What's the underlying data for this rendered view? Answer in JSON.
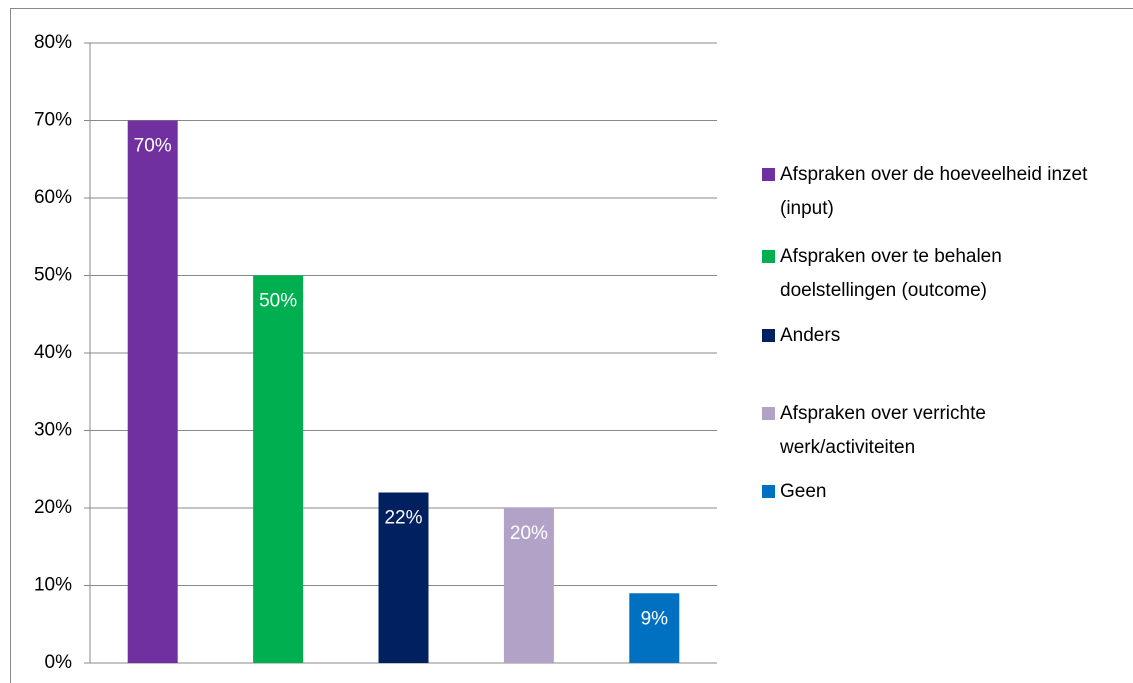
{
  "chart_data": {
    "type": "bar",
    "series": [
      {
        "name": "Afspraken over de hoeveelheid inzet (input)",
        "color": "#7030a0",
        "values": [
          70
        ],
        "value_labels": [
          "70%"
        ]
      },
      {
        "name": "Afspraken over te behalen doelstellingen (outcome)",
        "color": "#00b050",
        "values": [
          50
        ],
        "value_labels": [
          "50%"
        ]
      },
      {
        "name": "Anders",
        "color": "#002060",
        "values": [
          22
        ],
        "value_labels": [
          "22%"
        ]
      },
      {
        "name": "Afspraken over verrichte werk/activiteiten",
        "color": "#b3a2c7",
        "values": [
          20
        ],
        "value_labels": [
          "20%"
        ]
      },
      {
        "name": "Geen",
        "color": "#0070c0",
        "values": [
          9
        ],
        "value_labels": [
          "9%"
        ]
      }
    ],
    "ylim": [
      0,
      80
    ],
    "yticks": [
      {
        "value": 0,
        "label": "0%"
      },
      {
        "value": 10,
        "label": "10%"
      },
      {
        "value": 20,
        "label": "20%"
      },
      {
        "value": 30,
        "label": "30%"
      },
      {
        "value": 40,
        "label": "40%"
      },
      {
        "value": 50,
        "label": "50%"
      },
      {
        "value": 60,
        "label": "60%"
      },
      {
        "value": 70,
        "label": "70%"
      },
      {
        "value": 80,
        "label": "80%"
      }
    ],
    "grid": true,
    "legend": "right"
  }
}
